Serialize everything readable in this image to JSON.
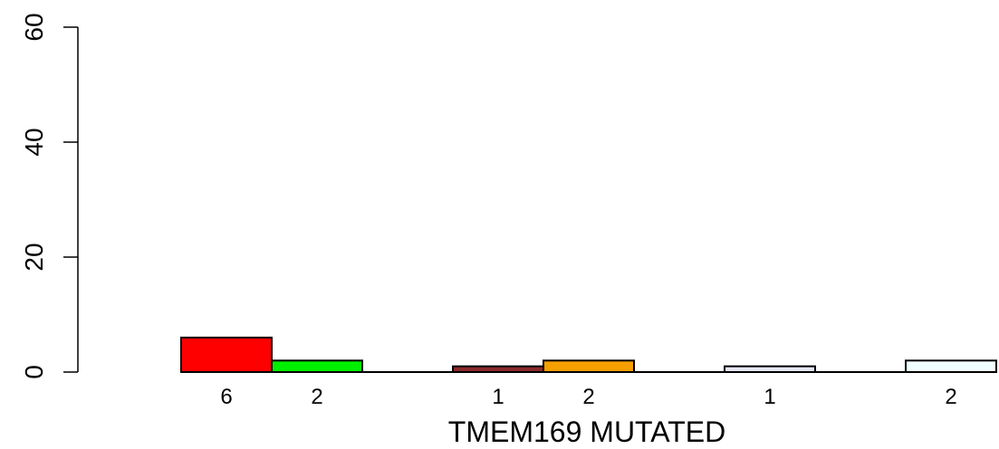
{
  "chart_data": {
    "type": "bar",
    "xlabel": "TMEM169 MUTATED",
    "ylabel": "",
    "ylim": [
      0,
      60
    ],
    "yticks": [
      0,
      20,
      40,
      60
    ],
    "grid": false,
    "legend": "none",
    "bars": [
      {
        "value": 6,
        "label": "6",
        "color": "#ff0000"
      },
      {
        "value": 2,
        "label": "2",
        "color": "#00ee00"
      },
      {
        "value": null,
        "label": "",
        "color": "#ffffff"
      },
      {
        "value": 1,
        "label": "1",
        "color": "#8b2a2a"
      },
      {
        "value": 2,
        "label": "2",
        "color": "#f5a000"
      },
      {
        "value": null,
        "label": "",
        "color": "#ffffff"
      },
      {
        "value": 1,
        "label": "1",
        "color": "#e6e6fa"
      },
      {
        "value": null,
        "label": "",
        "color": "#ffffff"
      },
      {
        "value": 2,
        "label": "2",
        "color": "#f0ffff"
      }
    ]
  }
}
